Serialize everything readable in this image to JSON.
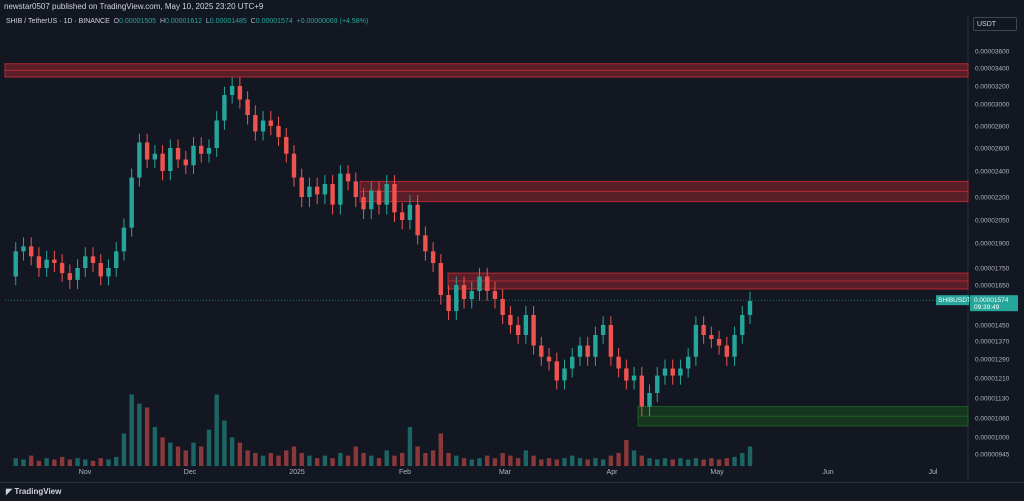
{
  "publisher_line": "newstar0507 published on TradingView.com, May 10, 2025 23:20 UTC+9",
  "legend": {
    "symbol": "SHIB / TetherUS · 1D · BINANCE",
    "o_label": "O",
    "o": "0.00001505",
    "h_label": "H",
    "h": "0.00001612",
    "l_label": "L",
    "l": "0.00001485",
    "c_label": "C",
    "c": "0.00001574",
    "change": "+0.00000069 (+4.58%)"
  },
  "currency_button": "USDT",
  "brand": "TradingView",
  "price_tag": {
    "symbol": "SHIBUSDT",
    "price": "0.00001574",
    "countdown": "09:39:49"
  },
  "colors": {
    "background": "#131722",
    "up": "#26a69a",
    "down": "#ef5350",
    "zone_red": "#b22833",
    "zone_green": "#1b5e20"
  },
  "chart_data": {
    "type": "candlestick",
    "y_ticks": [
      "0.00003600",
      "0.00003400",
      "0.00003200",
      "0.00003000",
      "0.00002800",
      "0.00002600",
      "0.00002400",
      "0.00002200",
      "0.00002050",
      "0.00001900",
      "0.00001750",
      "0.00001650",
      "0.00001450",
      "0.00001370",
      "0.00001290",
      "0.00001210",
      "0.00001130",
      "0.00001060",
      "0.00001000",
      "0.00000945"
    ],
    "x_ticks": [
      "Nov",
      "Dec",
      "2025",
      "Feb",
      "Mar",
      "Apr",
      "May",
      "Jun",
      "Jul"
    ],
    "zones": [
      {
        "kind": "resistance",
        "low": 3.3e-05,
        "high": 3.45e-05,
        "from": "Oct"
      },
      {
        "kind": "resistance",
        "low": 2.17e-05,
        "high": 2.32e-05,
        "from": "Jan"
      },
      {
        "kind": "resistance",
        "low": 1.63e-05,
        "high": 1.72e-05,
        "from": "Feb"
      },
      {
        "kind": "support",
        "low": 1.035e-05,
        "high": 1.1e-05,
        "from": "Apr"
      }
    ],
    "price_path": [
      1.7e-05,
      1.85e-05,
      1.88e-05,
      1.82e-05,
      1.75e-05,
      1.8e-05,
      1.78e-05,
      1.72e-05,
      1.68e-05,
      1.75e-05,
      1.82e-05,
      1.78e-05,
      1.7e-05,
      1.75e-05,
      1.85e-05,
      2e-05,
      2.35e-05,
      2.65e-05,
      2.5e-05,
      2.55e-05,
      2.4e-05,
      2.6e-05,
      2.5e-05,
      2.45e-05,
      2.62e-05,
      2.55e-05,
      2.6e-05,
      2.85e-05,
      3.1e-05,
      3.2e-05,
      3.05e-05,
      2.9e-05,
      2.75e-05,
      2.85e-05,
      2.8e-05,
      2.7e-05,
      2.55e-05,
      2.35e-05,
      2.2e-05,
      2.28e-05,
      2.22e-05,
      2.3e-05,
      2.15e-05,
      2.38e-05,
      2.32e-05,
      2.2e-05,
      2.12e-05,
      2.25e-05,
      2.15e-05,
      2.3e-05,
      2.1e-05,
      2.05e-05,
      2.15e-05,
      1.95e-05,
      1.85e-05,
      1.78e-05,
      1.6e-05,
      1.52e-05,
      1.65e-05,
      1.58e-05,
      1.62e-05,
      1.7e-05,
      1.62e-05,
      1.58e-05,
      1.5e-05,
      1.45e-05,
      1.4e-05,
      1.5e-05,
      1.35e-05,
      1.3e-05,
      1.28e-05,
      1.2e-05,
      1.25e-05,
      1.3e-05,
      1.35e-05,
      1.3e-05,
      1.4e-05,
      1.45e-05,
      1.3e-05,
      1.25e-05,
      1.2e-05,
      1.22e-05,
      1.1e-05,
      1.15e-05,
      1.22e-05,
      1.25e-05,
      1.22e-05,
      1.25e-05,
      1.3e-05,
      1.45e-05,
      1.4e-05,
      1.38e-05,
      1.35e-05,
      1.3e-05,
      1.4e-05,
      1.5e-05,
      1.57e-05
    ],
    "volume_path": [
      0.05,
      0.06,
      0.05,
      0.08,
      0.04,
      0.06,
      0.05,
      0.07,
      0.05,
      0.06,
      0.05,
      0.04,
      0.06,
      0.05,
      0.07,
      0.25,
      0.55,
      0.48,
      0.45,
      0.3,
      0.22,
      0.18,
      0.15,
      0.12,
      0.18,
      0.15,
      0.28,
      0.55,
      0.35,
      0.22,
      0.18,
      0.12,
      0.1,
      0.08,
      0.1,
      0.08,
      0.12,
      0.15,
      0.1,
      0.08,
      0.06,
      0.08,
      0.06,
      0.1,
      0.08,
      0.15,
      0.1,
      0.08,
      0.06,
      0.12,
      0.08,
      0.1,
      0.3,
      0.15,
      0.1,
      0.12,
      0.25,
      0.1,
      0.08,
      0.06,
      0.05,
      0.06,
      0.08,
      0.06,
      0.1,
      0.08,
      0.06,
      0.12,
      0.08,
      0.05,
      0.06,
      0.05,
      0.06,
      0.08,
      0.06,
      0.05,
      0.06,
      0.05,
      0.08,
      0.1,
      0.2,
      0.12,
      0.08,
      0.06,
      0.05,
      0.06,
      0.05,
      0.06,
      0.05,
      0.06,
      0.05,
      0.06,
      0.05,
      0.06,
      0.07,
      0.1,
      0.15
    ]
  }
}
